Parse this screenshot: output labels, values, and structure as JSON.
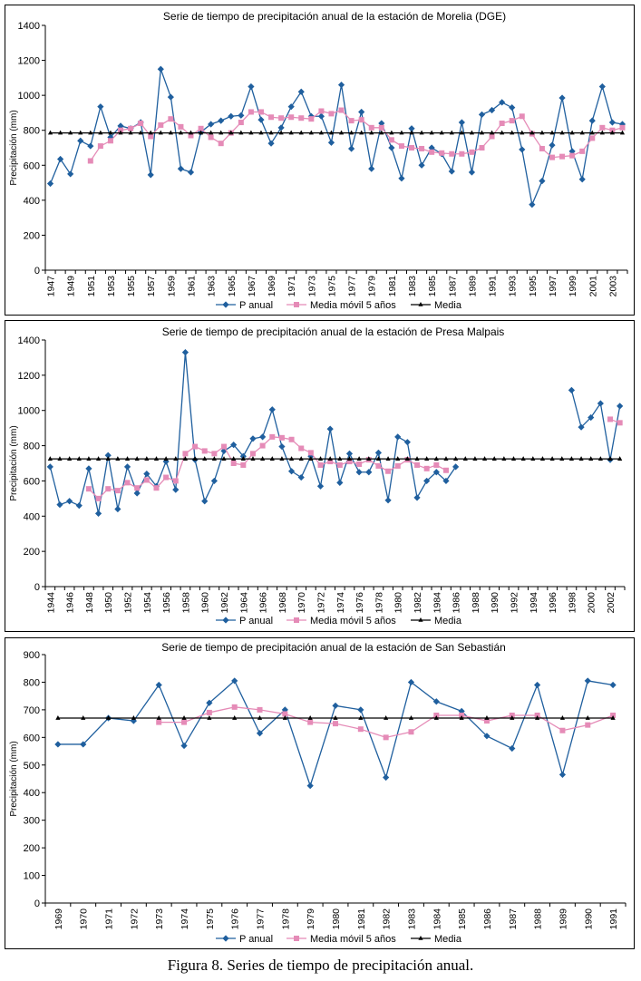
{
  "caption": "Figura 8. Series de tiempo de precipitación anual.",
  "chart_data": [
    {
      "type": "line",
      "title": "Serie de tiempo de precipitación anual de la estación de Morelia (DGE)",
      "ylabel": "Precipitación (mm)",
      "xlabel": "",
      "ylim": [
        0,
        1400
      ],
      "yticks": [
        0,
        200,
        400,
        600,
        800,
        1000,
        1200,
        1400
      ],
      "x": [
        1947,
        1948,
        1949,
        1950,
        1951,
        1952,
        1953,
        1954,
        1955,
        1956,
        1957,
        1958,
        1959,
        1960,
        1961,
        1962,
        1963,
        1964,
        1965,
        1966,
        1967,
        1968,
        1969,
        1970,
        1971,
        1972,
        1973,
        1974,
        1975,
        1976,
        1977,
        1978,
        1979,
        1980,
        1981,
        1982,
        1983,
        1984,
        1985,
        1986,
        1987,
        1988,
        1989,
        1990,
        1991,
        1992,
        1993,
        1994,
        1995,
        1996,
        1997,
        1998,
        1999,
        2000,
        2001,
        2002,
        2003,
        2004
      ],
      "xticks": [
        "1947",
        "1949",
        "1951",
        "1953",
        "1955",
        "1957",
        "1959",
        "1961",
        "1963",
        "1965",
        "1967",
        "1969",
        "1971",
        "1973",
        "1975",
        "1977",
        "1979",
        "1981",
        "1983",
        "1985",
        "1987",
        "1989",
        "1991",
        "1993",
        "1995",
        "1997",
        "1999",
        "2001",
        "2003"
      ],
      "series": [
        {
          "name": "P anual",
          "values": [
            495,
            635,
            550,
            740,
            710,
            935,
            760,
            825,
            810,
            845,
            545,
            1150,
            990,
            580,
            560,
            790,
            835,
            855,
            880,
            885,
            1050,
            860,
            725,
            815,
            935,
            1020,
            880,
            880,
            730,
            1060,
            695,
            905,
            580,
            840,
            700,
            525,
            810,
            600,
            700,
            665,
            565,
            845,
            560,
            890,
            915,
            960,
            930,
            690,
            375,
            510,
            715,
            985,
            680,
            520,
            855,
            1050,
            845,
            835
          ]
        },
        {
          "name": "Media móvil 5 años",
          "values": [
            null,
            null,
            null,
            null,
            625,
            710,
            740,
            800,
            810,
            840,
            765,
            830,
            865,
            820,
            770,
            810,
            760,
            725,
            785,
            845,
            905,
            905,
            875,
            870,
            875,
            870,
            865,
            910,
            895,
            915,
            855,
            860,
            815,
            815,
            745,
            710,
            700,
            695,
            675,
            670,
            665,
            665,
            675,
            700,
            765,
            840,
            855,
            880,
            780,
            695,
            645,
            650,
            655,
            680,
            755,
            815,
            800,
            815
          ]
        },
        {
          "name": "Media",
          "values": [
            785,
            785,
            785,
            785,
            785,
            785,
            785,
            785,
            785,
            785,
            785,
            785,
            785,
            785,
            785,
            785,
            785,
            785,
            785,
            785,
            785,
            785,
            785,
            785,
            785,
            785,
            785,
            785,
            785,
            785,
            785,
            785,
            785,
            785,
            785,
            785,
            785,
            785,
            785,
            785,
            785,
            785,
            785,
            785,
            785,
            785,
            785,
            785,
            785,
            785,
            785,
            785,
            785,
            785,
            785,
            785,
            785,
            785
          ]
        }
      ],
      "legend": [
        "P anual",
        "Media móvil 5 años",
        "Media"
      ]
    },
    {
      "type": "line",
      "title": "Serie de tiempo de precipitación anual de la estación de Presa Malpais",
      "ylabel": "Precipitación (mm)",
      "xlabel": "",
      "ylim": [
        0,
        1400
      ],
      "yticks": [
        0,
        200,
        400,
        600,
        800,
        1000,
        1200,
        1400
      ],
      "x": [
        1944,
        1945,
        1946,
        1947,
        1948,
        1949,
        1950,
        1951,
        1952,
        1953,
        1954,
        1955,
        1956,
        1957,
        1958,
        1959,
        1960,
        1961,
        1962,
        1963,
        1964,
        1965,
        1966,
        1967,
        1968,
        1969,
        1970,
        1971,
        1972,
        1973,
        1974,
        1975,
        1976,
        1977,
        1978,
        1979,
        1980,
        1981,
        1982,
        1983,
        1984,
        1985,
        1986,
        1987,
        1988,
        1989,
        1990,
        1991,
        1992,
        1993,
        1994,
        1995,
        1996,
        1997,
        1998,
        1999,
        2000,
        2001,
        2002,
        2003
      ],
      "xticks": [
        "1944",
        "1946",
        "1948",
        "1950",
        "1952",
        "1954",
        "1956",
        "1958",
        "1960",
        "1962",
        "1964",
        "1966",
        "1968",
        "1970",
        "1972",
        "1974",
        "1976",
        "1978",
        "1980",
        "1982",
        "1984",
        "1986",
        "1988",
        "1990",
        "1992",
        "1994",
        "1996",
        "1998",
        "2000",
        "2002"
      ],
      "series": [
        {
          "name": "P anual",
          "values": [
            680,
            465,
            485,
            460,
            670,
            415,
            745,
            440,
            680,
            530,
            640,
            570,
            710,
            550,
            1330,
            720,
            485,
            600,
            770,
            805,
            740,
            840,
            850,
            1005,
            795,
            655,
            620,
            740,
            570,
            895,
            590,
            755,
            650,
            650,
            760,
            490,
            850,
            820,
            505,
            600,
            650,
            600,
            680,
            null,
            null,
            null,
            null,
            null,
            null,
            null,
            null,
            null,
            null,
            null,
            1115,
            905,
            960,
            1040,
            720,
            1025
          ]
        },
        {
          "name": "Media móvil 5 años",
          "values": [
            null,
            null,
            null,
            null,
            555,
            500,
            555,
            545,
            590,
            560,
            605,
            560,
            620,
            600,
            755,
            795,
            770,
            755,
            795,
            700,
            690,
            755,
            800,
            850,
            845,
            835,
            785,
            760,
            690,
            710,
            690,
            710,
            695,
            720,
            685,
            655,
            685,
            720,
            690,
            670,
            690,
            660,
            null,
            null,
            null,
            null,
            null,
            null,
            null,
            null,
            null,
            null,
            null,
            null,
            null,
            null,
            null,
            null,
            950,
            930
          ]
        },
        {
          "name": "Media",
          "values": [
            725,
            725,
            725,
            725,
            725,
            725,
            725,
            725,
            725,
            725,
            725,
            725,
            725,
            725,
            725,
            725,
            725,
            725,
            725,
            725,
            725,
            725,
            725,
            725,
            725,
            725,
            725,
            725,
            725,
            725,
            725,
            725,
            725,
            725,
            725,
            725,
            725,
            725,
            725,
            725,
            725,
            725,
            725,
            725,
            725,
            725,
            725,
            725,
            725,
            725,
            725,
            725,
            725,
            725,
            725,
            725,
            725,
            725,
            725,
            725
          ]
        }
      ],
      "legend": [
        "P anual",
        "Media móvil 5 años",
        "Media"
      ]
    },
    {
      "type": "line",
      "title": "Serie de tiempo de precipitación anual de la estación de San Sebastián",
      "ylabel": "Precipitación (mm)",
      "xlabel": "",
      "ylim": [
        0,
        900
      ],
      "yticks": [
        0,
        100,
        200,
        300,
        400,
        500,
        600,
        700,
        800,
        900
      ],
      "x": [
        1969,
        1970,
        1971,
        1972,
        1973,
        1974,
        1975,
        1976,
        1977,
        1978,
        1979,
        1980,
        1981,
        1982,
        1983,
        1984,
        1985,
        1986,
        1987,
        1988,
        1989,
        1990,
        1991
      ],
      "xticks": [
        "1969",
        "1970",
        "1971",
        "1972",
        "1973",
        "1974",
        "1975",
        "1976",
        "1977",
        "1978",
        "1979",
        "1980",
        "1981",
        "1982",
        "1983",
        "1984",
        "1985",
        "1986",
        "1987",
        "1988",
        "1989",
        "1990",
        "1991"
      ],
      "series": [
        {
          "name": "P anual",
          "values": [
            575,
            575,
            670,
            660,
            790,
            570,
            725,
            805,
            615,
            700,
            425,
            715,
            700,
            455,
            800,
            730,
            695,
            605,
            560,
            790,
            465,
            805,
            790
          ]
        },
        {
          "name": "Media móvil 5 años",
          "values": [
            null,
            null,
            null,
            null,
            655,
            655,
            690,
            710,
            700,
            685,
            655,
            650,
            630,
            600,
            620,
            680,
            680,
            660,
            680,
            680,
            625,
            645,
            680
          ]
        },
        {
          "name": "Media",
          "values": [
            670,
            670,
            670,
            670,
            670,
            670,
            670,
            670,
            670,
            670,
            670,
            670,
            670,
            670,
            670,
            670,
            670,
            670,
            670,
            670,
            670,
            670,
            670
          ]
        }
      ],
      "legend": [
        "P anual",
        "Media móvil 5 años",
        "Media"
      ]
    }
  ],
  "colors": {
    "p_anual": "#1f5f9e",
    "media_movil": "#e58bb7",
    "media": "#000000",
    "axis": "#000000"
  }
}
